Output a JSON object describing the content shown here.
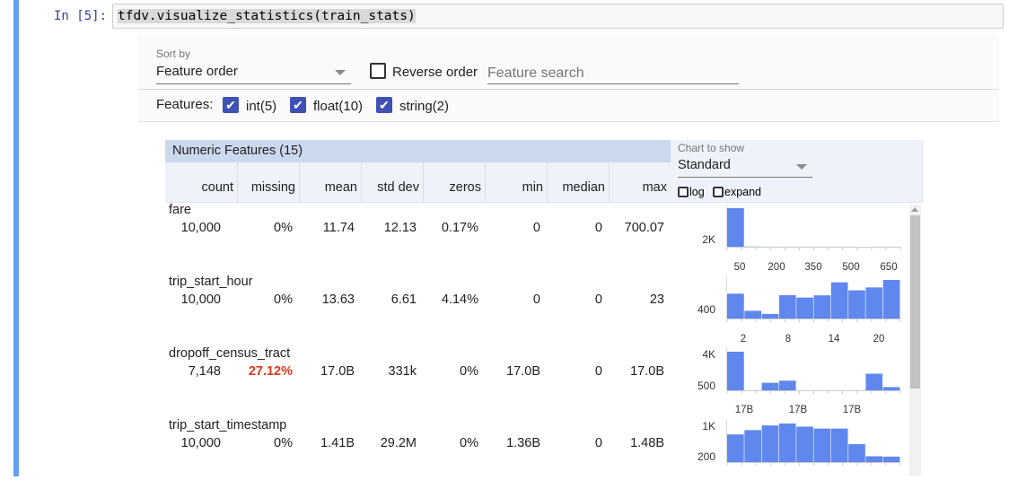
{
  "cell": {
    "prompt": "In [5]:",
    "code": "tfdv.visualize_statistics(train_stats)"
  },
  "controls": {
    "sort_by_label": "Sort by",
    "sort_by_value": "Feature order",
    "reverse_order_label": "Reverse order",
    "reverse_order_checked": false,
    "feature_search_placeholder": "Feature search",
    "features_label": "Features:",
    "feature_types": [
      {
        "label": "int(5)",
        "checked": true
      },
      {
        "label": "float(10)",
        "checked": true
      },
      {
        "label": "string(2)",
        "checked": true
      }
    ]
  },
  "table": {
    "title": "Numeric Features (15)",
    "columns": [
      "count",
      "missing",
      "mean",
      "std dev",
      "zeros",
      "min",
      "median",
      "max"
    ],
    "rows": [
      {
        "name": "fare",
        "values": [
          "10,000",
          "0%",
          "11.74",
          "12.13",
          "0.17%",
          "0",
          "0",
          "700.07"
        ]
      },
      {
        "name": "trip_start_hour",
        "values": [
          "10,000",
          "0%",
          "13.63",
          "6.61",
          "4.14%",
          "0",
          "0",
          "23"
        ]
      },
      {
        "name": "dropoff_census_tract",
        "values": [
          "7,148",
          "27.12%",
          "17.0B",
          "331k",
          "0%",
          "17.0B",
          "0",
          "17.0B"
        ],
        "highlight_missing": true
      },
      {
        "name": "trip_start_timestamp",
        "values": [
          "10,000",
          "0%",
          "1.41B",
          "29.2M",
          "0%",
          "1.36B",
          "0",
          "1.48B"
        ]
      }
    ]
  },
  "chart_controls": {
    "chart_to_show_label": "Chart to show",
    "chart_to_show_value": "Standard",
    "log_label": "log",
    "log_checked": false,
    "expand_label": "expand",
    "expand_checked": false
  },
  "colors": {
    "bar": "#5f87ee",
    "missing_highlight": "#db3a1f",
    "header": "#cbd9ee",
    "checkbox": "#3f51b5",
    "cell_bar": "#64a0f0"
  },
  "chart_data": [
    {
      "type": "bar",
      "feature": "fare",
      "values": [
        9900,
        50,
        20,
        10,
        5,
        3,
        2,
        1,
        1,
        2
      ],
      "y_ticks": [
        "2K"
      ],
      "x_ticks": [
        "50",
        "200",
        "350",
        "500",
        "650"
      ]
    },
    {
      "type": "bar",
      "feature": "trip_start_hour",
      "values": [
        1030,
        320,
        190,
        970,
        870,
        960,
        1500,
        1170,
        1290,
        1600
      ],
      "y_ticks": [
        "400"
      ],
      "x_ticks": [
        "2",
        "8",
        "14",
        "20"
      ]
    },
    {
      "type": "bar",
      "feature": "dropoff_census_tract",
      "values": [
        3600,
        0,
        700,
        900,
        0,
        0,
        0,
        0,
        1550,
        300
      ],
      "y_ticks": [
        "4K",
        "500"
      ],
      "x_ticks": []
    },
    {
      "type": "bar",
      "feature": "trip_start_timestamp",
      "values": [
        710,
        820,
        940,
        990,
        910,
        860,
        860,
        460,
        150,
        140
      ],
      "y_ticks": [
        "1K",
        "200"
      ],
      "x_ticks": [
        "17B",
        "17B",
        "17B"
      ],
      "x_ticks_above": true
    }
  ]
}
